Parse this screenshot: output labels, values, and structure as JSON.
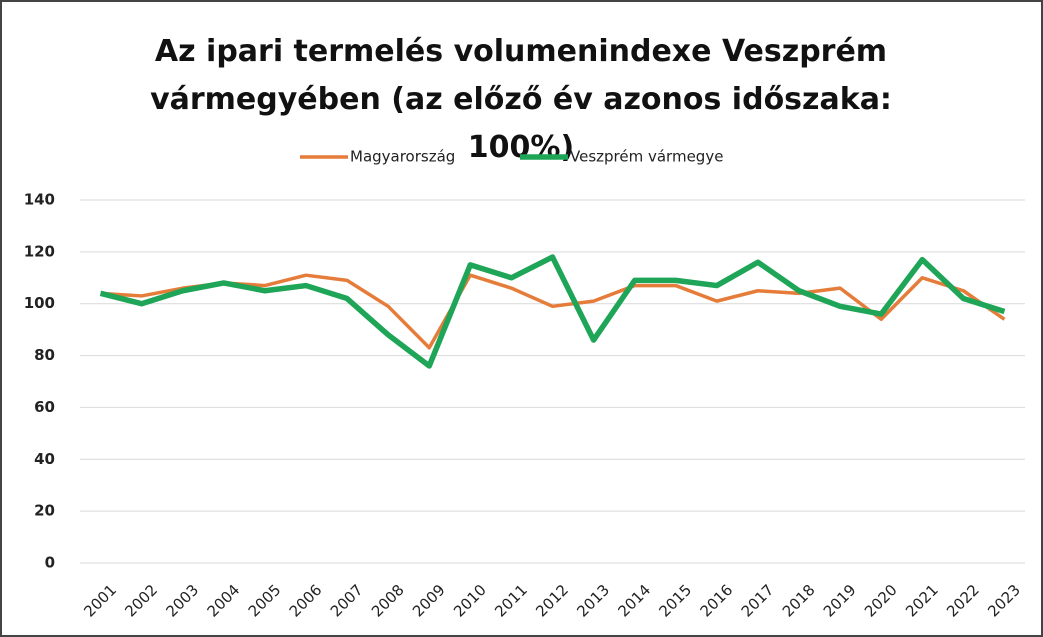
{
  "chart_data": {
    "type": "line",
    "title": "Az ipari termelés volumenindexe Veszprém vármegyében (az előző év azonos időszaka: 100%)",
    "categories": [
      "2001",
      "2002",
      "2003",
      "2004",
      "2005",
      "2006",
      "2007",
      "2008",
      "2009",
      "2010",
      "2011",
      "2012",
      "2013",
      "2014",
      "2015",
      "2016",
      "2017",
      "2018",
      "2019",
      "2020",
      "2021",
      "2022",
      "2023"
    ],
    "series": [
      {
        "name": "Magyarország",
        "color": "#e57c3a",
        "values": [
          104,
          103,
          106,
          108,
          107,
          111,
          109,
          99,
          83,
          111,
          106,
          99,
          101,
          107,
          107,
          101,
          105,
          104,
          106,
          94,
          110,
          105,
          94
        ]
      },
      {
        "name": "Veszprém vármegye",
        "color": "#1fa557",
        "values": [
          104,
          100,
          105,
          108,
          105,
          107,
          102,
          88,
          76,
          115,
          110,
          118,
          86,
          109,
          109,
          107,
          116,
          105,
          99,
          96,
          117,
          102,
          97
        ]
      }
    ],
    "ylim": [
      0,
      140
    ],
    "yticks": [
      0,
      20,
      40,
      60,
      80,
      100,
      120,
      140
    ],
    "grid": true,
    "legend": "top"
  }
}
